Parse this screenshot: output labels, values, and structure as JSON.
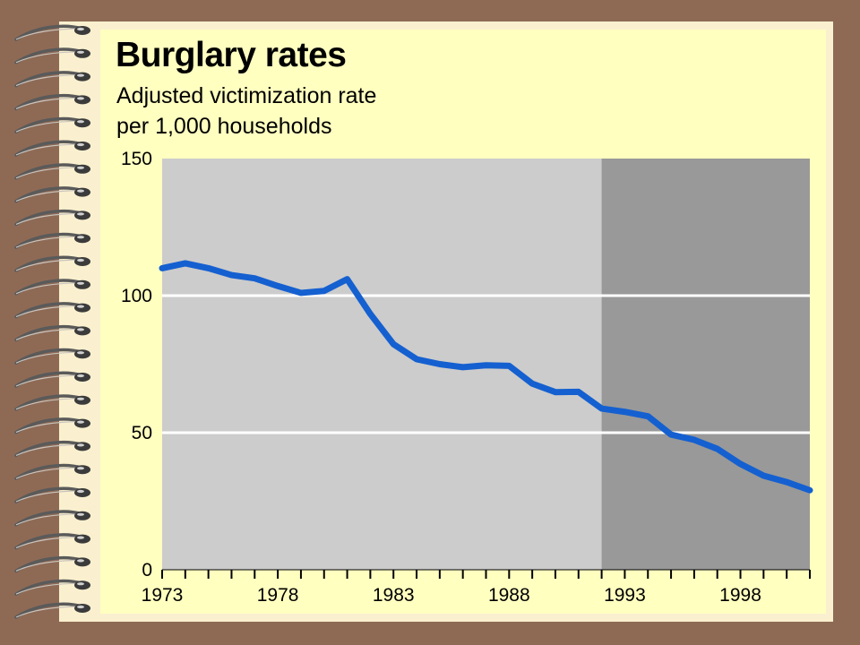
{
  "chart_data": {
    "type": "line",
    "title": "Burglary rates",
    "subtitle_lines": [
      "Adjusted victimization rate",
      "per 1,000 households"
    ],
    "xlabel": "",
    "ylabel": "",
    "x_tick_labels": [
      "1973",
      "1978",
      "1983",
      "1988",
      "1993",
      "1998"
    ],
    "y_tick_labels": [
      "0",
      "50",
      "100",
      "150"
    ],
    "x_ticks": [
      1973,
      1978,
      1983,
      1988,
      1993,
      1998
    ],
    "y_ticks": [
      0,
      50,
      100,
      150
    ],
    "xlim": [
      1973,
      2001
    ],
    "ylim": [
      0,
      150
    ],
    "grid": "horizontal lines at 50 and 100",
    "shaded_region": {
      "from": 1992,
      "to": 2001,
      "color": "#999999"
    },
    "series": [
      {
        "color": "#1560d0",
        "x": [
          1973,
          1974,
          1975,
          1976,
          1977,
          1978,
          1979,
          1980,
          1981,
          1982,
          1983,
          1984,
          1985,
          1986,
          1987,
          1988,
          1989,
          1990,
          1991,
          1992,
          1993,
          1994,
          1995,
          1996,
          1997,
          1998,
          1999,
          2000,
          2001
        ],
        "values": [
          110.0,
          111.8,
          110.0,
          107.5,
          106.3,
          103.5,
          101.0,
          101.7,
          106.0,
          93.3,
          82.3,
          76.8,
          75.0,
          73.9,
          74.6,
          74.4,
          67.9,
          64.8,
          64.9,
          58.8,
          57.6,
          56.0,
          49.3,
          47.4,
          44.1,
          38.6,
          34.3,
          32.0,
          29.0
        ]
      }
    ]
  },
  "colors": {
    "background": "#8e6a55",
    "page": "#faf0cf",
    "panel": "#ffffc0",
    "plot_area": "#cccccc",
    "shaded_region": "#999999",
    "gridline": "#ffffff",
    "line": "#1560d0",
    "spiral": "#5a5a5a"
  }
}
